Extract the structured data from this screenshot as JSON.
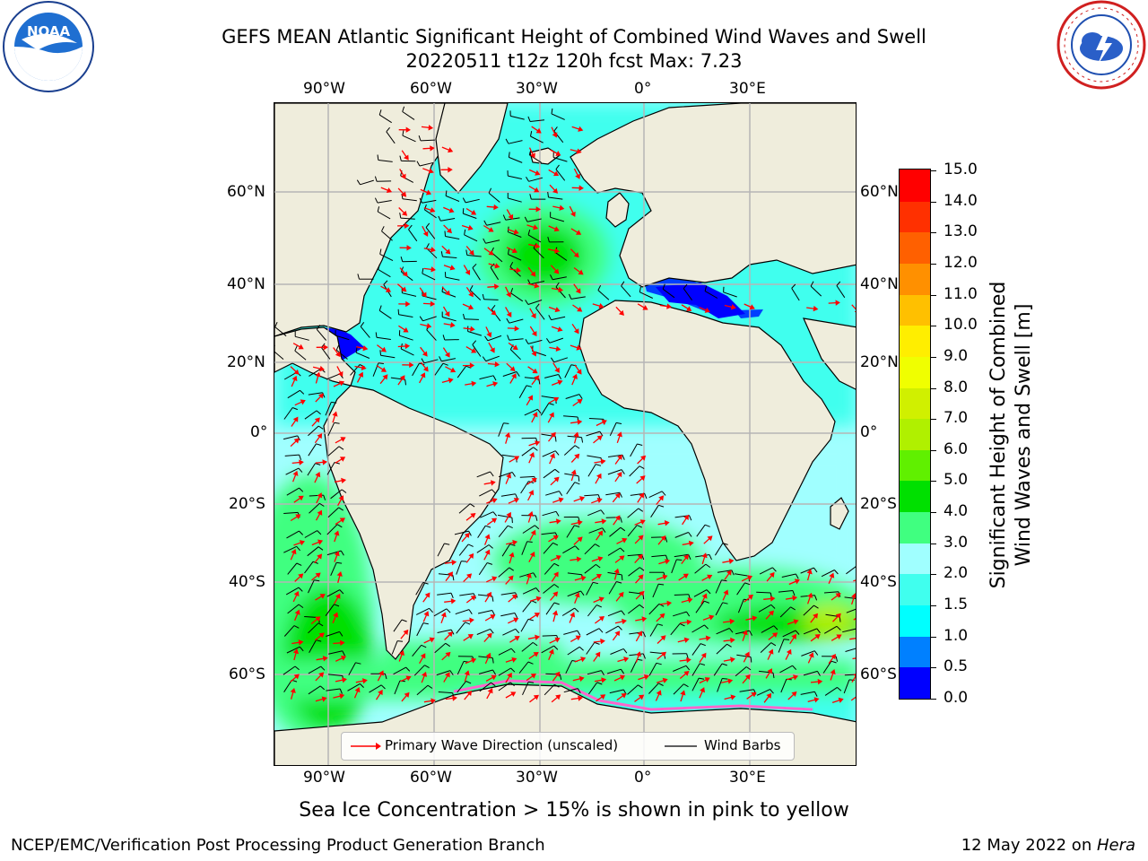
{
  "title": {
    "line1": "GEFS MEAN Atlantic Significant Height of Combined Wind Waves and Swell",
    "line2": "20220511 t12z 120h fcst   Max: 7.23"
  },
  "logos": {
    "left": {
      "name": "noaa-logo",
      "text": "NOAA"
    },
    "right": {
      "name": "nws-logo",
      "text": "NATIONAL WEATHER SERVICE"
    }
  },
  "map": {
    "lon_ticks_top": [
      "90°W",
      "60°W",
      "30°W",
      "0°",
      "30°E"
    ],
    "lon_ticks_bottom": [
      "90°W",
      "60°W",
      "30°W",
      "0°",
      "30°E"
    ],
    "lat_ticks_left": [
      "60°N",
      "40°N",
      "20°N",
      "0°",
      "20°S",
      "40°S",
      "60°S"
    ],
    "lat_ticks_right": [
      "60°N",
      "40°N",
      "20°N",
      "0°",
      "20°S",
      "40°S",
      "60°S"
    ],
    "colors": {
      "land": "#efeddc",
      "grid": "#b5b5b5",
      "wave_arrow": "#ff0000",
      "wind_barb": "#000000"
    }
  },
  "legend": {
    "wave_direction": "Primary Wave Direction (unscaled)",
    "wind_barbs": "Wind Barbs"
  },
  "colorbar": {
    "title_line1": "Significant Height of Combined",
    "title_line2": "Wind Waves and Swell [m]",
    "tick_labels": [
      "15.0",
      "14.0",
      "13.0",
      "12.0",
      "11.0",
      "10.0",
      "9.0",
      "8.0",
      "7.0",
      "6.0",
      "5.0",
      "4.0",
      "3.0",
      "2.0",
      "1.5",
      "1.0",
      "0.5",
      "0.0"
    ],
    "levels": [
      0,
      0.5,
      1.0,
      1.5,
      2.0,
      3.0,
      4.0,
      5.0,
      6.0,
      7.0,
      8.0,
      9.0,
      10.0,
      11.0,
      12.0,
      13.0,
      14.0,
      15.0
    ],
    "colors": [
      "#0000ff",
      "#0080ff",
      "#00ffff",
      "#40ffee",
      "#a0ffff",
      "#40ff80",
      "#00e000",
      "#60f000",
      "#b0f000",
      "#d0f000",
      "#f0ff00",
      "#ffee00",
      "#ffc000",
      "#ff9000",
      "#ff6000",
      "#ff3000",
      "#ff0000"
    ]
  },
  "caption": "Sea Ice Concentration > 15% is shown in pink to yellow",
  "footer": {
    "left": "NCEP/EMC/Verification Post Processing Product Generation Branch",
    "right_prefix": "12 May 2022 on ",
    "right_host": "Hera"
  }
}
